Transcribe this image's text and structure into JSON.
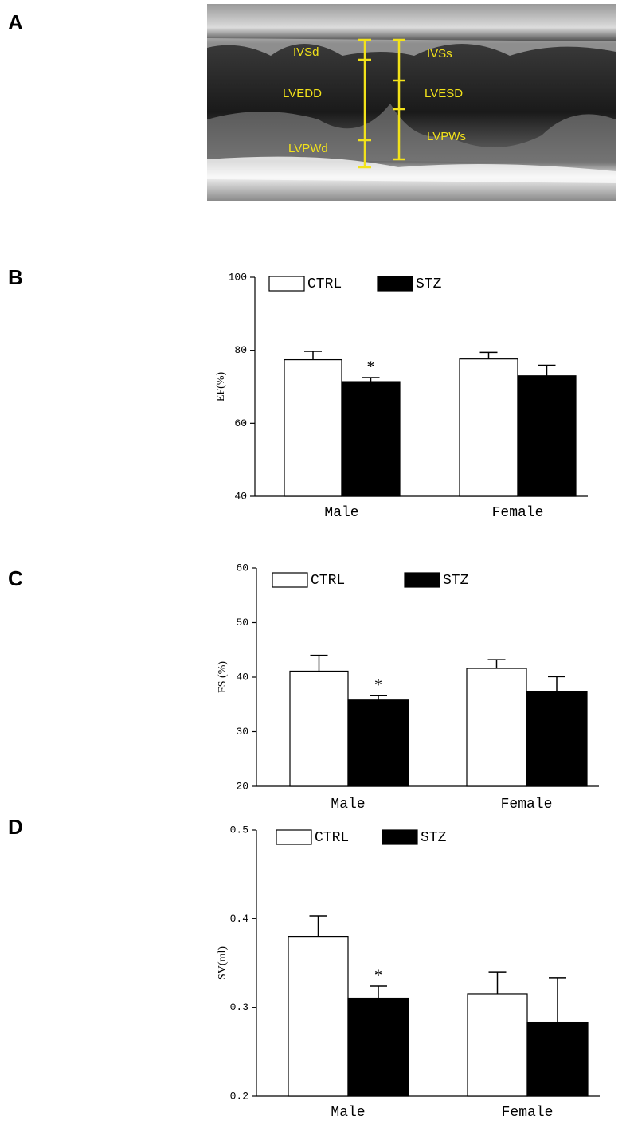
{
  "panel_a": {
    "label": "A",
    "annotations": [
      "IVSd",
      "LVEDD",
      "LVPWd",
      "IVSs",
      "LVESD",
      "LVPWs"
    ]
  },
  "chart_data": [
    {
      "type": "bar",
      "panel": "B",
      "ylabel": "EF(%)",
      "categories": [
        "Male",
        "Female"
      ],
      "series": [
        {
          "name": "CTRL",
          "color": "#ffffff",
          "values": [
            77.4,
            77.6
          ],
          "errors": [
            2.3,
            1.8
          ]
        },
        {
          "name": "STZ",
          "color": "#000000",
          "values": [
            71.4,
            73
          ],
          "errors": [
            1.1,
            2.9
          ],
          "significance": [
            "*",
            null
          ]
        }
      ],
      "ylim": [
        40,
        100
      ],
      "yticks": [
        40,
        60,
        80,
        100
      ]
    },
    {
      "type": "bar",
      "panel": "C",
      "ylabel": "FS (%)",
      "categories": [
        "Male",
        "Female"
      ],
      "series": [
        {
          "name": "CTRL",
          "color": "#ffffff",
          "values": [
            41.1,
            41.6
          ],
          "errors": [
            2.9,
            1.6
          ]
        },
        {
          "name": "STZ",
          "color": "#000000",
          "values": [
            35.8,
            37.4
          ],
          "errors": [
            0.8,
            2.7
          ],
          "significance": [
            "*",
            null
          ]
        }
      ],
      "ylim": [
        20,
        60
      ],
      "yticks": [
        20,
        30,
        40,
        50,
        60
      ]
    },
    {
      "type": "bar",
      "panel": "D",
      "ylabel": "SV(ml)",
      "categories": [
        "Male",
        "Female"
      ],
      "series": [
        {
          "name": "CTRL",
          "color": "#ffffff",
          "values": [
            0.38,
            0.315
          ],
          "errors": [
            0.023,
            0.025
          ]
        },
        {
          "name": "STZ",
          "color": "#000000",
          "values": [
            0.31,
            0.283
          ],
          "errors": [
            0.014,
            0.05
          ],
          "significance": [
            "*",
            null
          ]
        }
      ],
      "ylim": [
        0.2,
        0.5
      ],
      "yticks": [
        0.2,
        0.3,
        0.4,
        0.5
      ]
    }
  ]
}
